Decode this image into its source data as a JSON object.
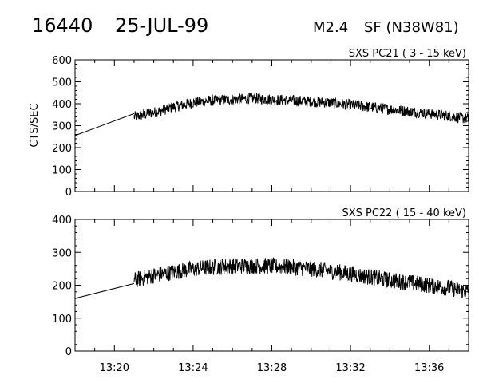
{
  "header": {
    "event_id": "16440",
    "date": "25-JUL-99",
    "flare_class": "M2.4",
    "flare_info": "SF (N38W81)"
  },
  "chart_data": [
    {
      "type": "line",
      "title": "SXS PC21  (  3 - 15 keV)",
      "ylabel": "CTS/SEC",
      "xlabel": "",
      "ylim": [
        0,
        600
      ],
      "yticks": [
        "0",
        "100",
        "200",
        "300",
        "400",
        "500",
        "600"
      ],
      "xlim": [
        "13:18",
        "13:38"
      ],
      "xticks": [
        "13:20",
        "13:24",
        "13:28",
        "13:32",
        "13:36"
      ],
      "series": [
        {
          "x": [
            "13:18",
            "13:21"
          ],
          "values": [
            255,
            355
          ]
        },
        {
          "x": [
            "13:21",
            "13:22",
            "13:23",
            "13:24",
            "13:25",
            "13:26",
            "13:27",
            "13:28",
            "13:29",
            "13:30",
            "13:31",
            "13:32",
            "13:33",
            "13:34",
            "13:35",
            "13:36",
            "13:37",
            "13:38"
          ],
          "values": [
            340,
            360,
            385,
            405,
            415,
            420,
            425,
            420,
            415,
            410,
            405,
            395,
            385,
            375,
            365,
            355,
            345,
            330
          ],
          "noise": 25
        }
      ]
    },
    {
      "type": "line",
      "title": "SXS PC22  ( 15 - 40 keV)",
      "ylabel": "",
      "xlabel": "",
      "ylim": [
        0,
        400
      ],
      "yticks": [
        "0",
        "100",
        "200",
        "300",
        "400"
      ],
      "xlim": [
        "13:18",
        "13:38"
      ],
      "xticks": [
        "13:20",
        "13:24",
        "13:28",
        "13:32",
        "13:36"
      ],
      "series": [
        {
          "x": [
            "13:18",
            "13:21"
          ],
          "values": [
            160,
            205
          ]
        },
        {
          "x": [
            "13:21",
            "13:22",
            "13:23",
            "13:24",
            "13:25",
            "13:26",
            "13:27",
            "13:28",
            "13:29",
            "13:30",
            "13:31",
            "13:32",
            "13:33",
            "13:34",
            "13:35",
            "13:36",
            "13:37",
            "13:38"
          ],
          "values": [
            215,
            230,
            240,
            250,
            255,
            258,
            260,
            258,
            255,
            250,
            243,
            235,
            225,
            215,
            208,
            200,
            192,
            180
          ],
          "noise": 25
        }
      ]
    }
  ]
}
